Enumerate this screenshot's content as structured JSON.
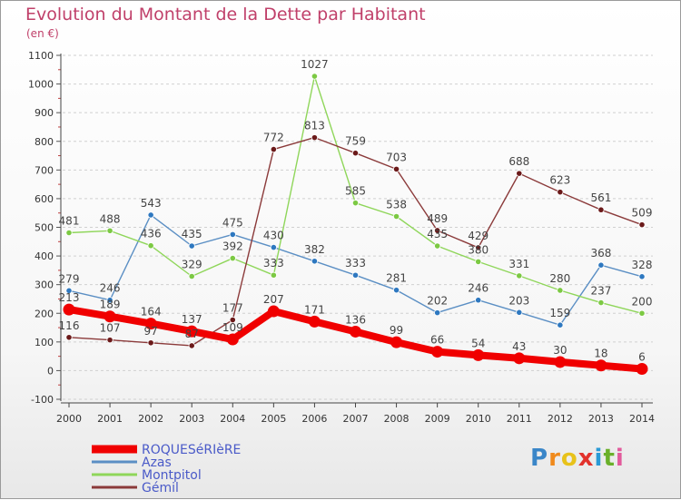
{
  "title": "Evolution du Montant de la Dette par Habitant",
  "unit_label": "(en €)",
  "logo": {
    "text": "Proxiti",
    "letters": [
      "P",
      "r",
      "o",
      "x",
      "i",
      "t",
      "i"
    ],
    "colors": [
      "#3a86c8",
      "#f08a1c",
      "#e8c21a",
      "#e2322c",
      "#2a9ad6",
      "#6ab02a",
      "#e25a9c"
    ]
  },
  "chart_data": {
    "type": "line",
    "x": [
      "2000",
      "2001",
      "2002",
      "2003",
      "2004",
      "2005",
      "2006",
      "2007",
      "2008",
      "2009",
      "2010",
      "2011",
      "2012",
      "2013",
      "2014"
    ],
    "ylim": [
      -100,
      1100
    ],
    "yticks": [
      -100,
      0,
      100,
      200,
      300,
      400,
      500,
      600,
      700,
      800,
      900,
      1000,
      1100
    ],
    "grid": "horizontal dashed",
    "legend_position": "bottom-left",
    "series": [
      {
        "name": "ROQUESéRIèRE",
        "color": "#f00000",
        "emphasis": true,
        "values": [
          213,
          189,
          164,
          137,
          109,
          207,
          171,
          136,
          99,
          66,
          54,
          43,
          30,
          18,
          6
        ],
        "labels": [
          "213",
          "189",
          "164",
          "137",
          "109",
          "207",
          "171",
          "136",
          "99",
          "66",
          "54",
          "43",
          "30",
          "18",
          "6"
        ]
      },
      {
        "name": "Azas",
        "color": "#5b8fc4",
        "marker": "#2e78c0",
        "values": [
          279,
          246,
          543,
          435,
          475,
          430,
          382,
          333,
          281,
          202,
          246,
          203,
          159,
          368,
          328
        ],
        "labels": [
          "279",
          "246",
          "543",
          "435",
          "475",
          "430",
          "382",
          "333",
          "281",
          "202",
          "246",
          "203",
          "159",
          "368",
          "328"
        ]
      },
      {
        "name": "Montpitol",
        "color": "#8fd65a",
        "marker": "#7cc943",
        "values": [
          481,
          488,
          436,
          329,
          392,
          333,
          1027,
          585,
          538,
          435,
          380,
          331,
          280,
          237,
          200
        ],
        "labels": [
          "481",
          "488",
          "436",
          "329",
          "392",
          "333",
          "1027",
          "585",
          "538",
          "435",
          "380",
          "331",
          "280",
          "237",
          "200"
        ]
      },
      {
        "name": "Gémil",
        "color": "#8b3a3a",
        "marker": "#6b1a1a",
        "values": [
          116,
          107,
          97,
          87,
          177,
          772,
          813,
          759,
          703,
          489,
          429,
          688,
          623,
          561,
          509
        ],
        "labels": [
          "116",
          "107",
          "97",
          "87",
          "177",
          "772",
          "813",
          "759",
          "703",
          "489",
          "429",
          "688",
          "623",
          "561",
          "509"
        ]
      }
    ]
  }
}
